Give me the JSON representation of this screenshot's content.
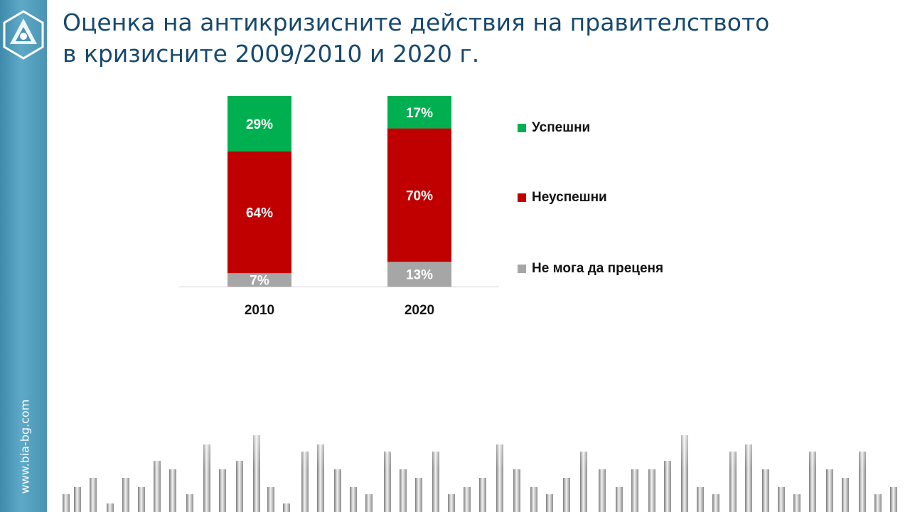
{
  "slide": {
    "title_line1": "Оценка на антикризисните действия на правителството",
    "title_line2": "в кризисните 2009/2010 и 2020 г.",
    "website": "www.bia-bg.com"
  },
  "chart_data": {
    "type": "bar",
    "stacked": true,
    "normalized": true,
    "categories": [
      "2010",
      "2020"
    ],
    "series": [
      {
        "name": "Не мога да преценя",
        "values": [
          7,
          13
        ],
        "labels": [
          "7%",
          "13%"
        ],
        "color": "#a6a6a6"
      },
      {
        "name": "Неуспешни",
        "values": [
          64,
          70
        ],
        "labels": [
          "64%",
          "70%"
        ],
        "color": "#c00000"
      },
      {
        "name": "Успешни",
        "values": [
          29,
          17
        ],
        "labels": [
          "29%",
          "17%"
        ],
        "color": "#00b050"
      }
    ],
    "legend_order": [
      "Успешни",
      "Неуспешни",
      "Не мога да преценя"
    ],
    "legend_position": "right",
    "ylim": [
      0,
      100
    ],
    "grid": false
  }
}
